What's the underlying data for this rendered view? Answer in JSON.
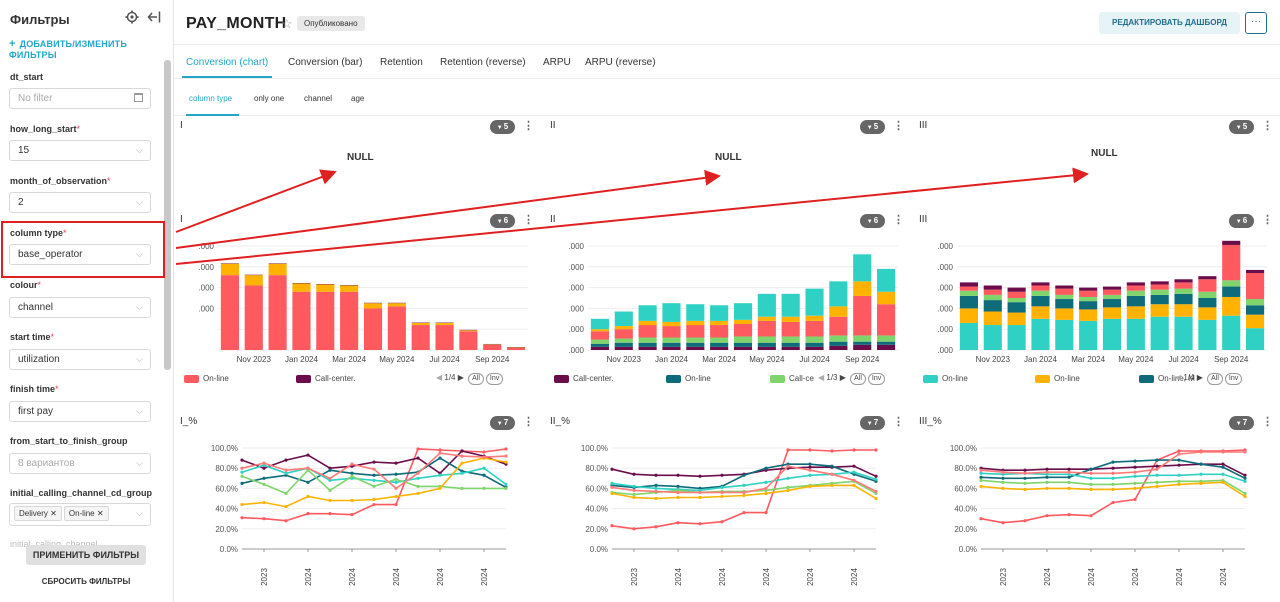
{
  "sidebar": {
    "title": "Фильтры",
    "add_label": "ДОБАВИТЬ/ИЗМЕНИТЬ ФИЛЬТРЫ",
    "filters": [
      {
        "label": "dt_start",
        "required": false,
        "value": "",
        "placeholder": "No filter",
        "icon": "calendar-icon"
      },
      {
        "label": "how_long_start",
        "required": true,
        "value": "15"
      },
      {
        "label": "month_of_observation",
        "required": true,
        "value": "2"
      },
      {
        "label": "column type",
        "required": true,
        "value": "base_operator"
      },
      {
        "label": "colour",
        "required": true,
        "value": "channel"
      },
      {
        "label": "start time",
        "required": true,
        "value": "utilization"
      },
      {
        "label": "finish time",
        "required": true,
        "value": "first pay"
      },
      {
        "label": "from_start_to_finish_group",
        "required": false,
        "value": "",
        "placeholder": "8 вариантов"
      },
      {
        "label": "initial_calling_channel_cd_group",
        "required": false,
        "chips": [
          "Delivery",
          "On-line"
        ]
      },
      {
        "label": "initial_calling_channel",
        "required": false
      }
    ],
    "apply_label": "ПРИМЕНИТЬ ФИЛЬТРЫ",
    "reset_label": "СБРОСИТЬ ФИЛЬТРЫ"
  },
  "header": {
    "title": "PAY_MONTH",
    "badge": "Опубликовано",
    "edit_label": "РЕДАКТИРОВАТЬ ДАШБОРД",
    "more_label": "···"
  },
  "tabs": [
    "Conversion (chart)",
    "Conversion (bar)",
    "Retention",
    "Retention (reverse)",
    "ARPU",
    "ARPU (reverse)"
  ],
  "subtabs": [
    "column type",
    "only one",
    "channel",
    "age"
  ],
  "null_cards": [
    {
      "title": "I",
      "badge": "5",
      "text": "NULL"
    },
    {
      "title": "II",
      "badge": "5",
      "text": "NULL"
    },
    {
      "title": "III",
      "badge": "5",
      "text": "NULL"
    }
  ],
  "chart_data": [
    {
      "type": "bar",
      "title": "I",
      "badge": "6",
      "categories": [
        "Oct 2023",
        "Nov 2023",
        "Dec 2023",
        "Jan 2024",
        "Feb 2024",
        "Mar 2024",
        "Apr 2024",
        "May 2024",
        "Jun 2024",
        "Jul 2024",
        "Aug 2024",
        "Sep 2024",
        "Oct 2024"
      ],
      "xticks": [
        "Nov 2023",
        "Jan 2024",
        "Mar 2024",
        "May 2024",
        "Jul 2024",
        "Sep 2024"
      ],
      "yticks": [
        "",
        "",
        ".000",
        ".000",
        ".000",
        ".000"
      ],
      "ylim": [
        0,
        5
      ],
      "series": [
        {
          "name": "On-line",
          "color": "#ff5a5f",
          "values": [
            3.6,
            3.1,
            3.6,
            2.8,
            2.8,
            2.8,
            2.0,
            2.1,
            1.2,
            1.2,
            0.9,
            0.25,
            0.1
          ]
        },
        {
          "color": "#ffb300",
          "values": [
            0.55,
            0.5,
            0.55,
            0.4,
            0.35,
            0.3,
            0.25,
            0.15,
            0.1,
            0.1,
            0.05,
            0.02,
            0.02
          ]
        },
        {
          "name": "Call-center.",
          "color": "#6b0d4b",
          "values": [
            0.02,
            0.02,
            0.02,
            0.02,
            0.02,
            0.02,
            0.02,
            0.02,
            0.02,
            0.02,
            0.02,
            0.02,
            0.02
          ]
        }
      ],
      "legend_page": "1/4",
      "legend_all": "All",
      "legend_inv": "Inv"
    },
    {
      "type": "bar",
      "title": "II",
      "badge": "6",
      "categories": [
        "Oct 2023",
        "Nov 2023",
        "Dec 2023",
        "Jan 2024",
        "Feb 2024",
        "Mar 2024",
        "Apr 2024",
        "May 2024",
        "Jun 2024",
        "Jul 2024",
        "Aug 2024",
        "Sep 2024",
        "Oct 2024"
      ],
      "xticks": [
        "Nov 2023",
        "Jan 2024",
        "Mar 2024",
        "May 2024",
        "Jul 2024",
        "Sep 2024"
      ],
      "yticks": [
        ".000",
        ".000",
        ".000",
        ".000",
        ".000",
        ".000"
      ],
      "ylim": [
        0,
        5
      ],
      "series": [
        {
          "name": "Call-center.",
          "color": "#6b0d4b",
          "values": [
            0.15,
            0.15,
            0.15,
            0.15,
            0.15,
            0.15,
            0.15,
            0.15,
            0.15,
            0.15,
            0.2,
            0.25,
            0.25
          ]
        },
        {
          "name": "On-line",
          "color": "#0e6b7a",
          "values": [
            0.15,
            0.2,
            0.2,
            0.2,
            0.2,
            0.2,
            0.2,
            0.2,
            0.2,
            0.2,
            0.2,
            0.15,
            0.15
          ]
        },
        {
          "name": "Call-ce",
          "color": "#7fd46b",
          "values": [
            0.2,
            0.2,
            0.25,
            0.25,
            0.25,
            0.25,
            0.3,
            0.3,
            0.3,
            0.3,
            0.3,
            0.3,
            0.3
          ]
        },
        {
          "color": "#ff5a5f",
          "values": [
            0.4,
            0.45,
            0.6,
            0.55,
            0.6,
            0.6,
            0.6,
            0.75,
            0.7,
            0.75,
            0.9,
            1.9,
            1.5
          ]
        },
        {
          "color": "#ffb300",
          "values": [
            0.1,
            0.15,
            0.2,
            0.2,
            0.2,
            0.2,
            0.2,
            0.2,
            0.25,
            0.25,
            0.5,
            0.7,
            0.6
          ]
        },
        {
          "color": "#2ed1c3",
          "values": [
            0.5,
            0.7,
            0.75,
            0.9,
            0.8,
            0.75,
            0.8,
            1.1,
            1.1,
            1.3,
            1.2,
            1.3,
            1.1
          ]
        }
      ],
      "legend_page": "1/3",
      "legend_all": "All",
      "legend_inv": "Inv"
    },
    {
      "type": "bar",
      "title": "III",
      "badge": "6",
      "categories": [
        "Oct 2023",
        "Nov 2023",
        "Dec 2023",
        "Jan 2024",
        "Feb 2024",
        "Mar 2024",
        "Apr 2024",
        "May 2024",
        "Jun 2024",
        "Jul 2024",
        "Aug 2024",
        "Sep 2024",
        "Oct 2024"
      ],
      "xticks": [
        "Nov 2023",
        "Jan 2024",
        "Mar 2024",
        "May 2024",
        "Jul 2024",
        "Sep 2024"
      ],
      "yticks": [
        ".000",
        ".000",
        ".000",
        ".000",
        ".000",
        ".000"
      ],
      "ylim": [
        0,
        5
      ],
      "series": [
        {
          "name": "On-line",
          "color": "#2ed1c3",
          "values": [
            1.3,
            1.2,
            1.2,
            1.5,
            1.45,
            1.4,
            1.5,
            1.5,
            1.6,
            1.6,
            1.45,
            1.65,
            1.05
          ]
        },
        {
          "name": "On-line",
          "color": "#ffb300",
          "values": [
            0.7,
            0.65,
            0.6,
            0.6,
            0.55,
            0.55,
            0.55,
            0.6,
            0.6,
            0.6,
            0.6,
            0.9,
            0.65
          ]
        },
        {
          "name": "On-line, M",
          "color": "#0e6b7a",
          "values": [
            0.6,
            0.55,
            0.5,
            0.5,
            0.45,
            0.4,
            0.4,
            0.5,
            0.45,
            0.5,
            0.45,
            0.5,
            0.45
          ]
        },
        {
          "color": "#7fd46b",
          "values": [
            0.25,
            0.25,
            0.2,
            0.25,
            0.2,
            0.2,
            0.2,
            0.25,
            0.25,
            0.25,
            0.3,
            0.3,
            0.3
          ]
        },
        {
          "color": "#ff5a5f",
          "values": [
            0.2,
            0.25,
            0.3,
            0.25,
            0.3,
            0.3,
            0.25,
            0.25,
            0.25,
            0.3,
            0.6,
            1.7,
            1.25
          ]
        },
        {
          "color": "#6b0d4b",
          "values": [
            0.2,
            0.2,
            0.2,
            0.15,
            0.15,
            0.15,
            0.15,
            0.15,
            0.15,
            0.15,
            0.15,
            0.2,
            0.15
          ]
        }
      ],
      "legend_page": "1/4",
      "legend_all": "All",
      "legend_inv": "Inv"
    },
    {
      "type": "line",
      "title": "I_%",
      "badge": "7",
      "categories": [
        "Oct 2023",
        "Nov 2023",
        "Dec 2023",
        "Jan 2024",
        "Feb 2024",
        "Mar 2024",
        "Apr 2024",
        "May 2024",
        "Jun 2024",
        "Jul 2024",
        "Aug 2024",
        "Sep 2024",
        "Oct 2024"
      ],
      "xticks": [
        "2023",
        "2024",
        "2024",
        "2024",
        "2024",
        "2024"
      ],
      "yticks": [
        "0.0%",
        "20.0%",
        "40.0%",
        "60.0%",
        "80.0%",
        "100.0%"
      ],
      "ylim": [
        0,
        100
      ],
      "series": [
        {
          "color": "#ff5a5f",
          "values": [
            31,
            30,
            28,
            35,
            35,
            34,
            44,
            44,
            99,
            98,
            97,
            96,
            99
          ]
        },
        {
          "color": "#6b0d4b",
          "values": [
            88,
            80,
            88,
            93,
            80,
            82,
            86,
            85,
            90,
            75,
            97,
            92,
            84
          ]
        },
        {
          "color": "#0e6b7a",
          "values": [
            65,
            70,
            73,
            66,
            78,
            75,
            73,
            74,
            76,
            90,
            77,
            73,
            61
          ]
        },
        {
          "color": "#2ed1c3",
          "values": [
            76,
            83,
            75,
            80,
            68,
            70,
            68,
            66,
            70,
            73,
            75,
            80,
            64
          ]
        },
        {
          "color": "#7fd46b",
          "values": [
            72,
            64,
            55,
            78,
            58,
            72,
            62,
            69,
            62,
            62,
            60,
            60,
            60
          ]
        },
        {
          "color": "#ffb300",
          "values": [
            44,
            46,
            42,
            52,
            48,
            48,
            49,
            52,
            55,
            60,
            85,
            90,
            86
          ]
        },
        {
          "color": "#ff7a7a",
          "values": [
            80,
            85,
            78,
            80,
            70,
            84,
            79,
            60,
            75,
            95,
            92,
            91,
            92
          ]
        }
      ]
    },
    {
      "type": "line",
      "title": "II_%",
      "badge": "7",
      "categories": [
        "Oct 2023",
        "Nov 2023",
        "Dec 2023",
        "Jan 2024",
        "Feb 2024",
        "Mar 2024",
        "Apr 2024",
        "May 2024",
        "Jun 2024",
        "Jul 2024",
        "Aug 2024",
        "Sep 2024",
        "Oct 2024"
      ],
      "xticks": [
        "2023",
        "2024",
        "2024",
        "2024",
        "2024",
        "2024"
      ],
      "yticks": [
        "0.0%",
        "20.0%",
        "40.0%",
        "60.0%",
        "80.0%",
        "100.0%"
      ],
      "ylim": [
        0,
        100
      ],
      "series": [
        {
          "color": "#ff5a5f",
          "values": [
            23,
            20,
            22,
            26,
            25,
            27,
            36,
            36,
            98,
            98,
            97,
            98,
            98
          ]
        },
        {
          "color": "#6b0d4b",
          "values": [
            79,
            74,
            73,
            73,
            72,
            73,
            74,
            78,
            80,
            81,
            81,
            82,
            72
          ]
        },
        {
          "color": "#0e6b7a",
          "values": [
            63,
            61,
            63,
            62,
            60,
            62,
            73,
            80,
            84,
            84,
            82,
            74,
            67
          ]
        },
        {
          "color": "#2ed1c3",
          "values": [
            65,
            62,
            60,
            59,
            58,
            61,
            63,
            66,
            70,
            73,
            74,
            76,
            69
          ]
        },
        {
          "color": "#7fd46b",
          "values": [
            56,
            54,
            56,
            58,
            56,
            57,
            57,
            58,
            61,
            63,
            65,
            67,
            55
          ]
        },
        {
          "color": "#ffb300",
          "values": [
            55,
            51,
            50,
            51,
            51,
            52,
            53,
            55,
            58,
            62,
            63,
            63,
            50
          ]
        },
        {
          "color": "#ff7a7a",
          "values": [
            61,
            58,
            57,
            56,
            56,
            56,
            56,
            60,
            82,
            78,
            74,
            68,
            57
          ]
        }
      ]
    },
    {
      "type": "line",
      "title": "III_%",
      "badge": "7",
      "categories": [
        "Oct 2023",
        "Nov 2023",
        "Dec 2023",
        "Jan 2024",
        "Feb 2024",
        "Mar 2024",
        "Apr 2024",
        "May 2024",
        "Jun 2024",
        "Jul 2024",
        "Aug 2024",
        "Sep 2024",
        "Oct 2024"
      ],
      "xticks": [
        "2023",
        "2024",
        "2024",
        "2024",
        "2024",
        "2024"
      ],
      "yticks": [
        "0.0%",
        "20.0%",
        "40.0%",
        "60.0%",
        "80.0%",
        "100.0%"
      ],
      "ylim": [
        0,
        100
      ],
      "series": [
        {
          "color": "#ff5a5f",
          "values": [
            30,
            26,
            28,
            33,
            34,
            33,
            46,
            49,
            88,
            97,
            97,
            97,
            98
          ]
        },
        {
          "color": "#6b0d4b",
          "values": [
            80,
            78,
            78,
            79,
            79,
            79,
            80,
            81,
            82,
            83,
            84,
            84,
            73
          ]
        },
        {
          "color": "#0e6b7a",
          "values": [
            71,
            70,
            70,
            71,
            71,
            79,
            86,
            87,
            88,
            88,
            84,
            81,
            70
          ]
        },
        {
          "color": "#2ed1c3",
          "values": [
            75,
            74,
            75,
            74,
            74,
            70,
            70,
            72,
            73,
            73,
            74,
            74,
            67
          ]
        },
        {
          "color": "#7fd46b",
          "values": [
            68,
            66,
            65,
            66,
            66,
            64,
            64,
            65,
            66,
            67,
            67,
            68,
            55
          ]
        },
        {
          "color": "#ffb300",
          "values": [
            62,
            60,
            59,
            60,
            60,
            59,
            59,
            60,
            62,
            64,
            65,
            66,
            52
          ]
        },
        {
          "color": "#ff7a7a",
          "values": [
            78,
            76,
            75,
            76,
            76,
            75,
            75,
            76,
            79,
            94,
            96,
            96,
            96
          ]
        }
      ]
    }
  ]
}
